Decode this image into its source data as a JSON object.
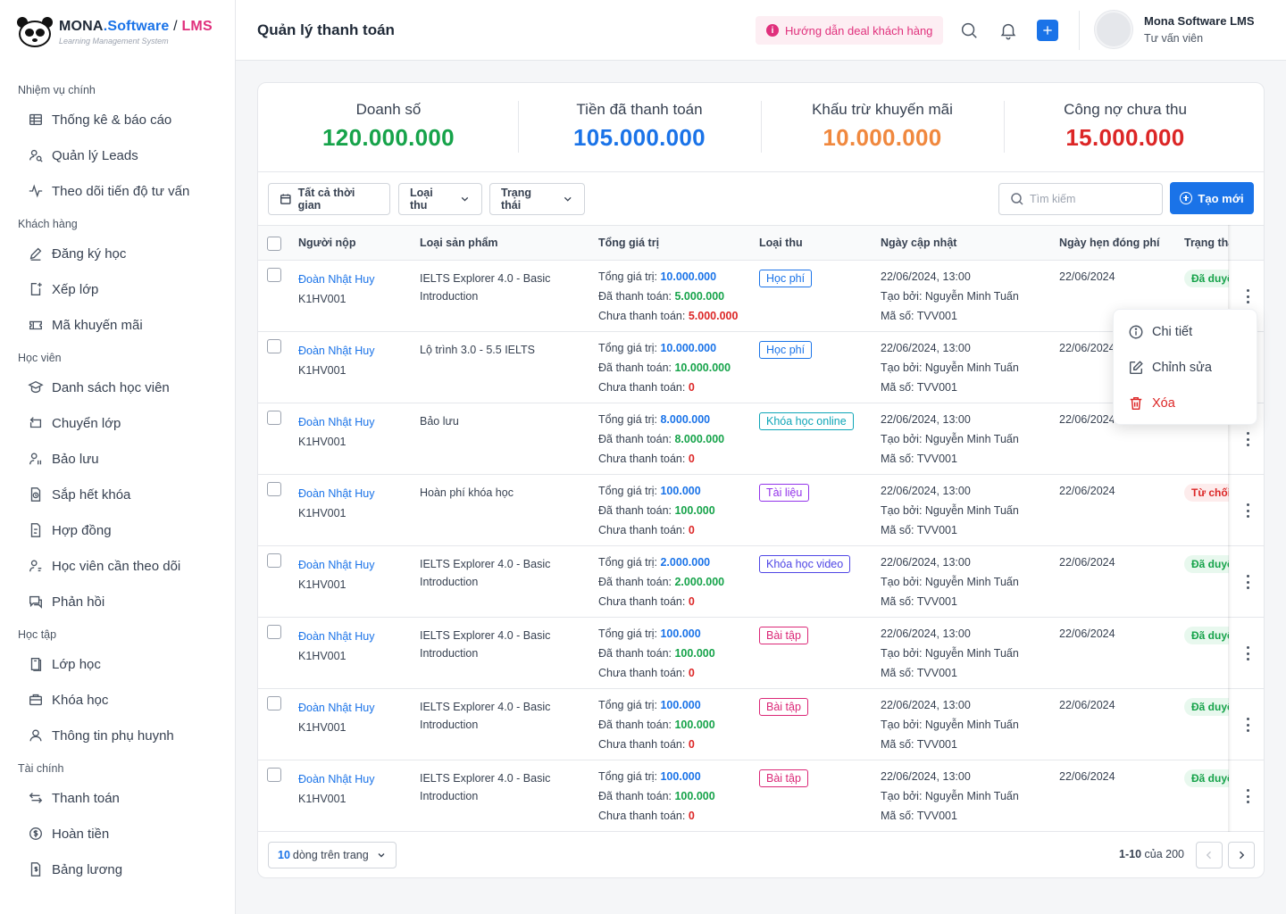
{
  "brand": {
    "part1": "MONA",
    "part2": ".Software",
    "part3": " / ",
    "part4": "LMS",
    "subtitle": "Learning Management System"
  },
  "sidebar": {
    "sections": [
      {
        "title": "Nhiệm vụ chính",
        "items": [
          {
            "label": "Thống kê & báo cáo",
            "icon": "table-icon"
          },
          {
            "label": "Quản lý Leads",
            "icon": "user-search-icon"
          },
          {
            "label": "Theo dõi tiến độ tư vấn",
            "icon": "activity-icon"
          }
        ]
      },
      {
        "title": "Khách hàng",
        "items": [
          {
            "label": "Đăng ký học",
            "icon": "pencil-icon"
          },
          {
            "label": "Xếp lớp",
            "icon": "class-assign-icon"
          },
          {
            "label": "Mã khuyến mãi",
            "icon": "ticket-icon"
          }
        ]
      },
      {
        "title": "Học viên",
        "items": [
          {
            "label": "Danh sách học viên",
            "icon": "graduation-cap-icon"
          },
          {
            "label": "Chuyển lớp",
            "icon": "transfer-icon"
          },
          {
            "label": "Bảo lưu",
            "icon": "user-pause-icon"
          },
          {
            "label": "Sắp hết khóa",
            "icon": "file-clock-icon"
          },
          {
            "label": "Hợp đồng",
            "icon": "contract-icon"
          },
          {
            "label": "Học viên cần theo dõi",
            "icon": "user-watch-icon"
          },
          {
            "label": "Phản hồi",
            "icon": "chat-icon"
          }
        ]
      },
      {
        "title": "Học tập",
        "items": [
          {
            "label": "Lớp học",
            "icon": "book-icon"
          },
          {
            "label": "Khóa học",
            "icon": "briefcase-icon"
          },
          {
            "label": "Thông tin phụ huynh",
            "icon": "user-icon"
          }
        ]
      },
      {
        "title": "Tài chính",
        "items": [
          {
            "label": "Thanh toán",
            "icon": "exchange-icon"
          },
          {
            "label": "Hoàn tiền",
            "icon": "refund-icon"
          },
          {
            "label": "Bảng lương",
            "icon": "salary-icon"
          }
        ]
      }
    ]
  },
  "header": {
    "title": "Quản lý thanh toán",
    "guide_label": "Hướng dẫn deal khách hàng",
    "user_name": "Mona Software LMS",
    "user_role": "Tư vấn viên"
  },
  "stats": [
    {
      "label": "Doanh số",
      "value": "120.000.000",
      "color": "#16a34a"
    },
    {
      "label": "Tiền đã thanh toán",
      "value": "105.000.000",
      "color": "#1a73e8"
    },
    {
      "label": "Khấu trừ khuyến mãi",
      "value": "10.000.000",
      "color": "#f0883e"
    },
    {
      "label": "Công nợ chưa thu",
      "value": "15.000.000",
      "color": "#dc2626"
    }
  ],
  "toolbar": {
    "time_filter": "Tất cả thời gian",
    "type_filter": "Loại thu",
    "status_filter": "Trạng thái",
    "search_placeholder": "Tìm kiếm",
    "create_label": "Tạo mới"
  },
  "table": {
    "columns": [
      "Người nộp",
      "Loại sản phẩm",
      "Tổng giá trị",
      "Loại thu",
      "Ngày cập nhật",
      "Ngày hẹn đóng phí",
      "Trạng thái"
    ],
    "labels": {
      "total": "Tổng giá trị: ",
      "paid": "Đã thanh toán: ",
      "unpaid": "Chưa thanh toán: "
    },
    "rows": [
      {
        "name": "Đoàn Nhật Huy",
        "code": "K1HV001",
        "product": "IELTS Explorer 4.0 - Basic Introduction",
        "total": "10.000.000",
        "paid": "5.000.000",
        "unpaid": "5.000.000",
        "type": "Học phí",
        "type_color": "#1a73e8",
        "updated": "22/06/2024, 13:00",
        "created_by": "Tạo bởi: Nguyễn Minh Tuấn",
        "doc_no": "Mã số: TVV001",
        "due": "22/06/2024",
        "status": "Đã duyệt",
        "status_kind": "ok"
      },
      {
        "name": "Đoàn Nhật Huy",
        "code": "K1HV001",
        "product": "Lộ trình 3.0 - 5.5 IELTS",
        "total": "10.000.000",
        "paid": "10.000.000",
        "unpaid": "0",
        "type": "Học phí",
        "type_color": "#1a73e8",
        "updated": "22/06/2024, 13:00",
        "created_by": "Tạo bởi: Nguyễn Minh Tuấn",
        "doc_no": "Mã số: TVV001",
        "due": "22/06/2024",
        "status": "",
        "status_kind": "ok"
      },
      {
        "name": "Đoàn Nhật Huy",
        "code": "K1HV001",
        "product": "Bảo lưu",
        "total": "8.000.000",
        "paid": "8.000.000",
        "unpaid": "0",
        "type": "Khóa học online",
        "type_color": "#0ea5b7",
        "updated": "22/06/2024, 13:00",
        "created_by": "Tạo bởi: Nguyễn Minh Tuấn",
        "doc_no": "Mã số: TVV001",
        "due": "22/06/2024",
        "status": "",
        "status_kind": "ok"
      },
      {
        "name": "Đoàn Nhật Huy",
        "code": "K1HV001",
        "product": "Hoàn phí khóa học",
        "total": "100.000",
        "paid": "100.000",
        "unpaid": "0",
        "type": "Tài liệu",
        "type_color": "#9333ea",
        "updated": "22/06/2024, 13:00",
        "created_by": "Tạo bởi: Nguyễn Minh Tuấn",
        "doc_no": "Mã số: TVV001",
        "due": "22/06/2024",
        "status": "Từ chối",
        "status_kind": "no"
      },
      {
        "name": "Đoàn Nhật Huy",
        "code": "K1HV001",
        "product": "IELTS Explorer 4.0 - Basic Introduction",
        "total": "2.000.000",
        "paid": "2.000.000",
        "unpaid": "0",
        "type": "Khóa học video",
        "type_color": "#4f46e5",
        "updated": "22/06/2024, 13:00",
        "created_by": "Tạo bởi: Nguyễn Minh Tuấn",
        "doc_no": "Mã số: TVV001",
        "due": "22/06/2024",
        "status": "Đã duyệt",
        "status_kind": "ok"
      },
      {
        "name": "Đoàn Nhật Huy",
        "code": "K1HV001",
        "product": "IELTS Explorer 4.0 - Basic Introduction",
        "total": "100.000",
        "paid": "100.000",
        "unpaid": "0",
        "type": "Bài tập",
        "type_color": "#db2777",
        "updated": "22/06/2024, 13:00",
        "created_by": "Tạo bởi: Nguyễn Minh Tuấn",
        "doc_no": "Mã số: TVV001",
        "due": "22/06/2024",
        "status": "Đã duyệt",
        "status_kind": "ok"
      },
      {
        "name": "Đoàn Nhật Huy",
        "code": "K1HV001",
        "product": "IELTS Explorer 4.0 - Basic Introduction",
        "total": "100.000",
        "paid": "100.000",
        "unpaid": "0",
        "type": "Bài tập",
        "type_color": "#db2777",
        "updated": "22/06/2024, 13:00",
        "created_by": "Tạo bởi: Nguyễn Minh Tuấn",
        "doc_no": "Mã số: TVV001",
        "due": "22/06/2024",
        "status": "Đã duyệt",
        "status_kind": "ok"
      },
      {
        "name": "Đoàn Nhật Huy",
        "code": "K1HV001",
        "product": "IELTS Explorer 4.0 - Basic Introduction",
        "total": "100.000",
        "paid": "100.000",
        "unpaid": "0",
        "type": "Bài tập",
        "type_color": "#db2777",
        "updated": "22/06/2024, 13:00",
        "created_by": "Tạo bởi: Nguyễn Minh Tuấn",
        "doc_no": "Mã số: TVV001",
        "due": "22/06/2024",
        "status": "Đã duyệt",
        "status_kind": "ok"
      }
    ]
  },
  "context_menu": {
    "detail": "Chi tiết",
    "edit": "Chỉnh sửa",
    "delete": "Xóa"
  },
  "pagination": {
    "page_size_num": "10",
    "page_size_text": "dòng trên trang",
    "range": "1-10",
    "of_total": " của 200"
  },
  "colors": {
    "accent": "#1a73e8",
    "pink": "#e0307c",
    "green": "#16a34a",
    "red": "#dc2626"
  }
}
